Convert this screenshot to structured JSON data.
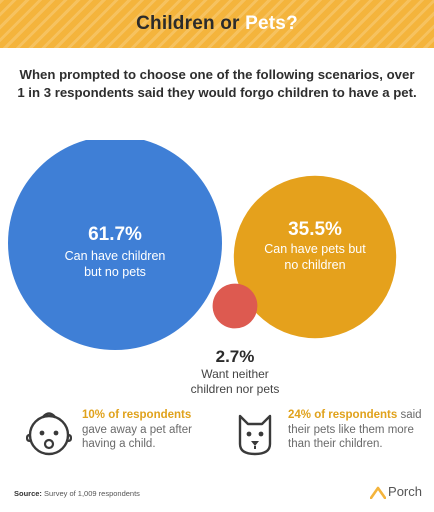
{
  "header": {
    "title_part1": "Children or",
    "title_part2": "Pets?",
    "bg_color": "#f4b43c"
  },
  "intro": {
    "text": "When prompted to choose one of the following scenarios, over 1 in 3 respondents said they would forgo children to have a pet."
  },
  "chart_data": {
    "type": "bubble",
    "title": "Children or Pets?",
    "series": [
      {
        "name": "Can have children but no pets",
        "value": 61.7,
        "label": "61.7%",
        "lines": [
          "Can have children",
          "but no pets"
        ],
        "color": "#3f7fd6"
      },
      {
        "name": "Can have pets but no children",
        "value": 35.5,
        "label": "35.5%",
        "lines": [
          "Can have pets but",
          "no children"
        ],
        "color": "#e5a11c"
      },
      {
        "name": "Want neither children nor pets",
        "value": 2.7,
        "label": "2.7%",
        "lines": [
          "Want neither",
          "children nor pets"
        ],
        "color": "#dd5a50"
      }
    ]
  },
  "stats": [
    {
      "icon": "baby-icon",
      "highlight": "10% of respondents",
      "rest_line1": "",
      "rest_lines": [
        "gave away a pet after",
        "having a child."
      ]
    },
    {
      "icon": "dog-icon",
      "highlight": "24% of respondents",
      "rest_line1": "said",
      "rest_lines": [
        "their pets like them more",
        "than their children."
      ]
    }
  ],
  "footer": {
    "source_label": "Source:",
    "source_text": "Survey of 1,009 respondents",
    "brand": "Porch",
    "brand_color": "#f4b43c"
  }
}
